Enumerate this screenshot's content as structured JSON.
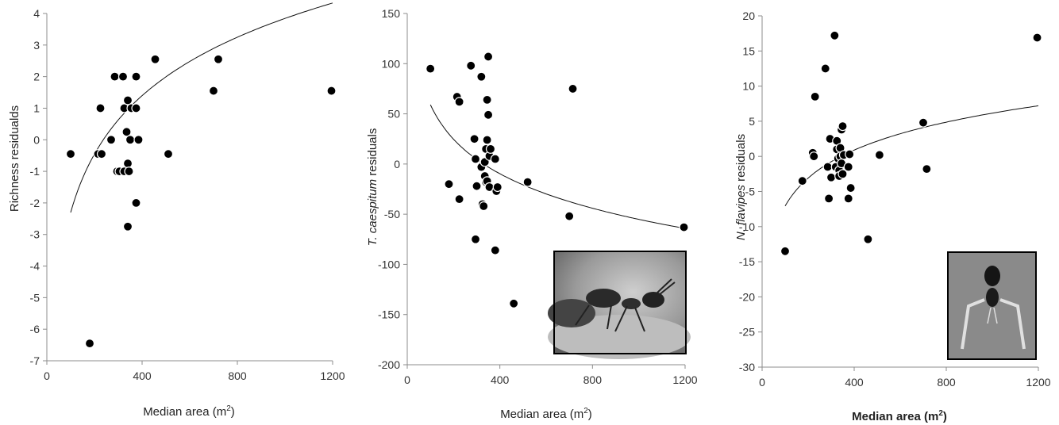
{
  "chart_data": [
    {
      "type": "scatter",
      "xlabel": "Median area (m",
      "xlabel_sup": "2",
      "xlabel_close": ")",
      "ylabel": "Richness residualds",
      "xlim": [
        0,
        1200
      ],
      "ylim": [
        -7,
        4
      ],
      "xticks": [
        "0",
        "400",
        "800",
        "1200"
      ],
      "yticks": [
        "4",
        "3",
        "2",
        "1",
        "0",
        "-1",
        "-2",
        "-3",
        "-4",
        "-5",
        "-6",
        "-7"
      ],
      "trendline": "logarithmic",
      "trend": {
        "a": 2.67,
        "b": -14.6
      },
      "points": [
        {
          "x": 100,
          "y": -0.45
        },
        {
          "x": 180,
          "y": -6.45
        },
        {
          "x": 215,
          "y": -0.45
        },
        {
          "x": 225,
          "y": 1.0
        },
        {
          "x": 230,
          "y": -0.45
        },
        {
          "x": 270,
          "y": 0.0
        },
        {
          "x": 285,
          "y": 2.0
        },
        {
          "x": 295,
          "y": -1.0
        },
        {
          "x": 305,
          "y": -1.0
        },
        {
          "x": 320,
          "y": 2.0
        },
        {
          "x": 325,
          "y": 1.0
        },
        {
          "x": 325,
          "y": -1.0
        },
        {
          "x": 335,
          "y": 0.25
        },
        {
          "x": 340,
          "y": 1.25
        },
        {
          "x": 340,
          "y": -0.75
        },
        {
          "x": 340,
          "y": -2.75
        },
        {
          "x": 345,
          "y": -1.0
        },
        {
          "x": 350,
          "y": 0.0
        },
        {
          "x": 355,
          "y": 1.0
        },
        {
          "x": 375,
          "y": 2.0
        },
        {
          "x": 375,
          "y": -2.0
        },
        {
          "x": 375,
          "y": 1.0
        },
        {
          "x": 385,
          "y": 0.0
        },
        {
          "x": 455,
          "y": 2.55
        },
        {
          "x": 510,
          "y": -0.45
        },
        {
          "x": 700,
          "y": 1.55
        },
        {
          "x": 720,
          "y": 2.55
        },
        {
          "x": 1195,
          "y": 1.55
        }
      ]
    },
    {
      "type": "scatter",
      "xlabel": "Median area (m",
      "xlabel_sup": "2",
      "xlabel_close": ")",
      "ylabel_italic": "T. caespitum",
      "ylabel_rest": " residuals",
      "xlim": [
        0,
        1200
      ],
      "ylim": [
        -200,
        150
      ],
      "xticks": [
        "0",
        "400",
        "800",
        "1200"
      ],
      "yticks": [
        "150",
        "100",
        "50",
        "0",
        "-50",
        "-100",
        "-150",
        "-200"
      ],
      "trendline": "logarithmic",
      "trend": {
        "a": -49.6,
        "b": 287.5
      },
      "points": [
        {
          "x": 100,
          "y": 95
        },
        {
          "x": 180,
          "y": -20
        },
        {
          "x": 215,
          "y": 67
        },
        {
          "x": 225,
          "y": 62
        },
        {
          "x": 225,
          "y": -35
        },
        {
          "x": 275,
          "y": 98
        },
        {
          "x": 290,
          "y": 25
        },
        {
          "x": 295,
          "y": 5
        },
        {
          "x": 295,
          "y": -75
        },
        {
          "x": 300,
          "y": -22
        },
        {
          "x": 320,
          "y": 87
        },
        {
          "x": 320,
          "y": -3
        },
        {
          "x": 325,
          "y": -40
        },
        {
          "x": 330,
          "y": -42
        },
        {
          "x": 335,
          "y": 2
        },
        {
          "x": 335,
          "y": -12
        },
        {
          "x": 340,
          "y": 15
        },
        {
          "x": 340,
          "y": -18
        },
        {
          "x": 345,
          "y": 64
        },
        {
          "x": 345,
          "y": 24
        },
        {
          "x": 345,
          "y": -17
        },
        {
          "x": 350,
          "y": 107
        },
        {
          "x": 350,
          "y": 49
        },
        {
          "x": 355,
          "y": 8
        },
        {
          "x": 355,
          "y": -23
        },
        {
          "x": 360,
          "y": 15
        },
        {
          "x": 380,
          "y": 5
        },
        {
          "x": 380,
          "y": -86
        },
        {
          "x": 385,
          "y": -27
        },
        {
          "x": 390,
          "y": -23
        },
        {
          "x": 460,
          "y": -139
        },
        {
          "x": 520,
          "y": -18
        },
        {
          "x": 700,
          "y": -52
        },
        {
          "x": 715,
          "y": 75
        },
        {
          "x": 1195,
          "y": -63
        }
      ]
    },
    {
      "type": "scatter",
      "xlabel": "Median area (m",
      "xlabel_sup": "2",
      "xlabel_close": ")",
      "xlabel_bold": true,
      "ylabel_italic": "N. flavipes",
      "ylabel_rest": " residuals",
      "xlim": [
        0,
        1200
      ],
      "ylim": [
        -30,
        20
      ],
      "xticks": [
        "0",
        "400",
        "800",
        "1200"
      ],
      "yticks": [
        "20",
        "15",
        "10",
        "5",
        "0",
        "-5",
        "-10",
        "-15",
        "-20",
        "-25",
        "-30"
      ],
      "trendline": "logarithmic",
      "trend": {
        "a": 5.74,
        "b": -33.5
      },
      "points": [
        {
          "x": 100,
          "y": -13.5
        },
        {
          "x": 175,
          "y": -3.5
        },
        {
          "x": 220,
          "y": 0.5
        },
        {
          "x": 225,
          "y": 0.0
        },
        {
          "x": 230,
          "y": 8.5
        },
        {
          "x": 275,
          "y": 12.5
        },
        {
          "x": 285,
          "y": -1.5
        },
        {
          "x": 290,
          "y": -6.0
        },
        {
          "x": 295,
          "y": 2.5
        },
        {
          "x": 300,
          "y": -3.0
        },
        {
          "x": 315,
          "y": 17.2
        },
        {
          "x": 320,
          "y": -1.5
        },
        {
          "x": 325,
          "y": 1.0
        },
        {
          "x": 325,
          "y": 2.2
        },
        {
          "x": 330,
          "y": -0.3
        },
        {
          "x": 335,
          "y": -2.0
        },
        {
          "x": 335,
          "y": -2.8
        },
        {
          "x": 340,
          "y": 1.2
        },
        {
          "x": 340,
          "y": 0.0
        },
        {
          "x": 345,
          "y": 3.8
        },
        {
          "x": 345,
          "y": -1.0
        },
        {
          "x": 350,
          "y": 4.3
        },
        {
          "x": 350,
          "y": -2.5
        },
        {
          "x": 355,
          "y": 0.2
        },
        {
          "x": 375,
          "y": -1.5
        },
        {
          "x": 375,
          "y": -6.0
        },
        {
          "x": 380,
          "y": 0.3
        },
        {
          "x": 385,
          "y": -4.5
        },
        {
          "x": 460,
          "y": -11.8
        },
        {
          "x": 510,
          "y": 0.2
        },
        {
          "x": 700,
          "y": 4.8
        },
        {
          "x": 715,
          "y": -1.8
        },
        {
          "x": 1195,
          "y": 16.9
        }
      ]
    }
  ]
}
